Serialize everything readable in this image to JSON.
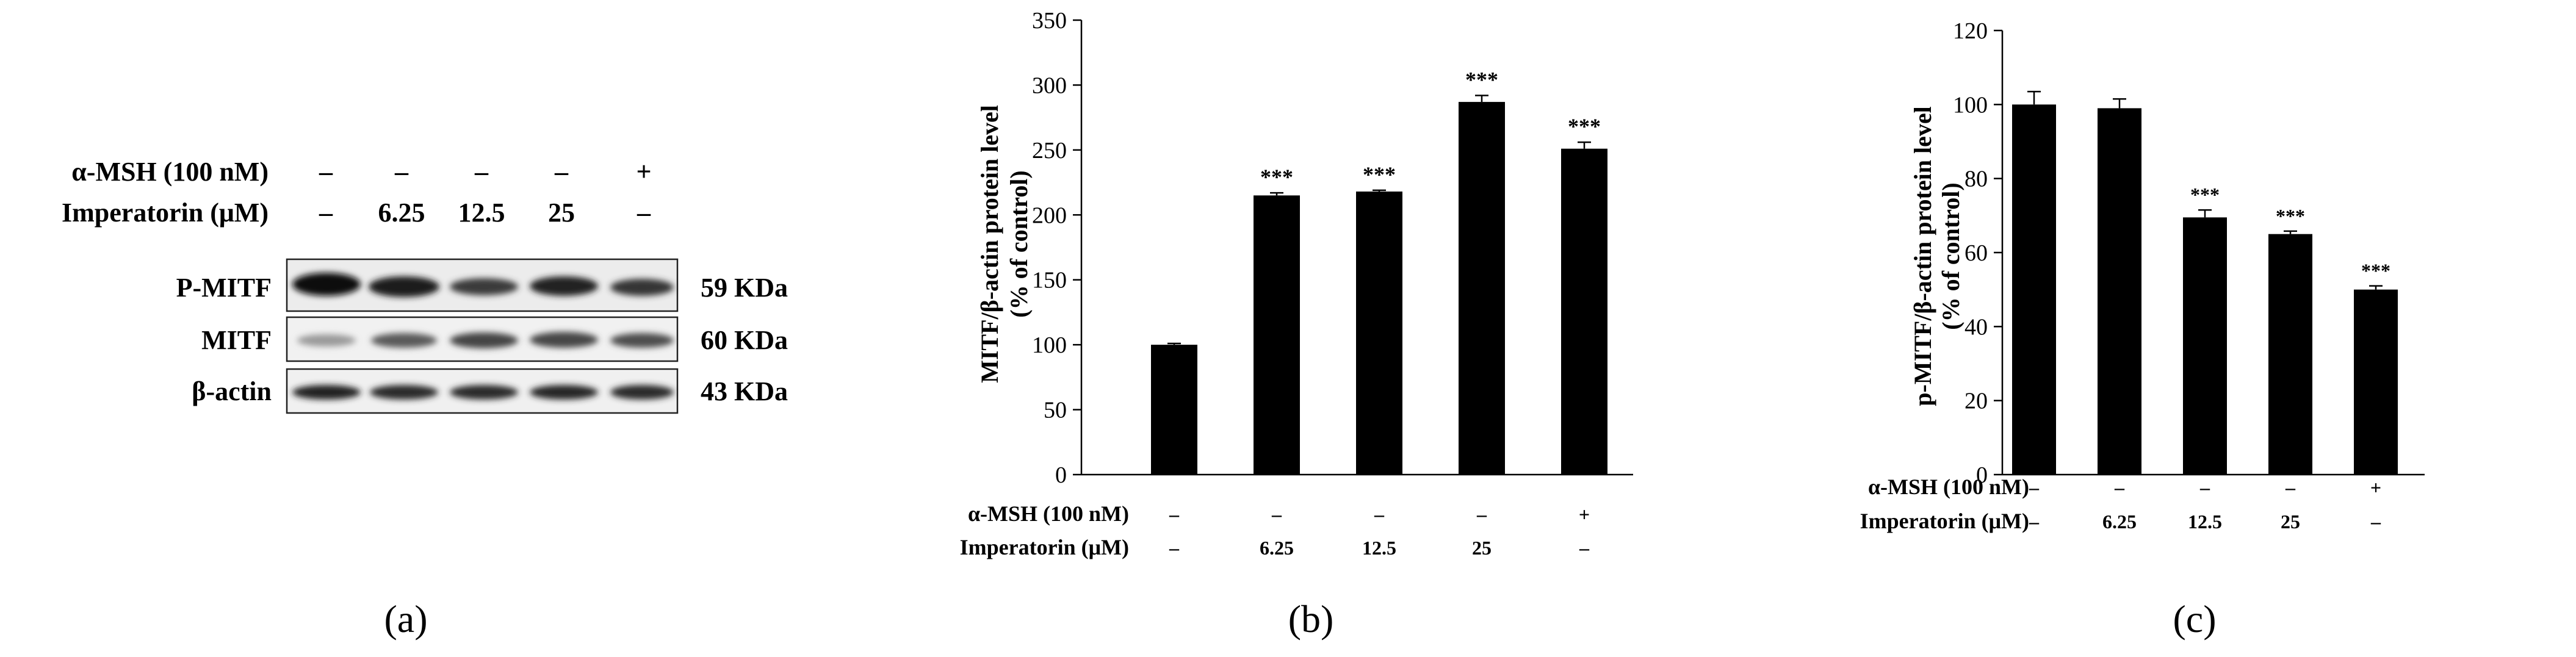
{
  "panel_labels": [
    "(a)",
    "(b)",
    "(c)"
  ],
  "blot": {
    "treatments": [
      {
        "label": "α-MSH (100 nM)",
        "values": [
          "–",
          "–",
          "–",
          "–",
          "+"
        ]
      },
      {
        "label": "Imperatorin (μM)",
        "values": [
          "–",
          "6.25",
          "12.5",
          "25",
          "–"
        ]
      }
    ],
    "rows": [
      {
        "label": "P-MITF",
        "size": "59 KDa"
      },
      {
        "label": "MITF",
        "size": "60 KDa"
      },
      {
        "label": "β-actin",
        "size": "43 KDa"
      }
    ]
  },
  "chart_data": [
    {
      "type": "bar",
      "panel": "b",
      "ylabel": "MITF/β-actin protein level",
      "ylabel2": "(% of control)",
      "ylim": [
        0,
        350
      ],
      "yticks": [
        "0",
        "50",
        "100",
        "150",
        "200",
        "250",
        "300",
        "350"
      ],
      "values": [
        100,
        215,
        218,
        287,
        251
      ],
      "errors": [
        1,
        2,
        1,
        5,
        5
      ],
      "significance": [
        "",
        "***",
        "***",
        "***",
        "***"
      ],
      "treatments": [
        {
          "label": "α-MSH (100 nM)",
          "values": [
            "–",
            "–",
            "–",
            "–",
            "+"
          ]
        },
        {
          "label": "Imperatorin (μM)",
          "values": [
            "–",
            "6.25",
            "12.5",
            "25",
            "–"
          ]
        }
      ]
    },
    {
      "type": "bar",
      "panel": "c",
      "ylabel": "p-MITF/β-actin protein level",
      "ylabel2": "(% of control)",
      "ylim": [
        0,
        120
      ],
      "yticks": [
        "0",
        "20",
        "40",
        "60",
        "80",
        "100",
        "120"
      ],
      "values": [
        100,
        99,
        69.5,
        65,
        50
      ],
      "errors": [
        3.5,
        2.5,
        2,
        0.8,
        1
      ],
      "significance": [
        "",
        "",
        "***",
        "***",
        "***"
      ],
      "treatments": [
        {
          "label": "α-MSH (100 nM)",
          "values": [
            "–",
            "–",
            "–",
            "–",
            "+"
          ]
        },
        {
          "label": "Imperatorin (μM)",
          "values": [
            "–",
            "6.25",
            "12.5",
            "25",
            "–"
          ]
        }
      ]
    }
  ]
}
